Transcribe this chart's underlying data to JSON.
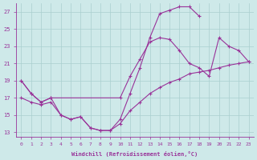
{
  "xlabel": "Windchill (Refroidissement éolien,°C)",
  "xlim": [
    -0.5,
    23.5
  ],
  "ylim": [
    12.5,
    28.0
  ],
  "xticks": [
    0,
    1,
    2,
    3,
    4,
    5,
    6,
    7,
    8,
    9,
    10,
    11,
    12,
    13,
    14,
    15,
    16,
    17,
    18,
    19,
    20,
    21,
    22,
    23
  ],
  "yticks": [
    13,
    15,
    17,
    19,
    21,
    23,
    25,
    27
  ],
  "bg_color": "#cee9e9",
  "grid_color": "#aacfcf",
  "line_color": "#993399",
  "line1_x": [
    0,
    1,
    2,
    3,
    4,
    5,
    6,
    7,
    8,
    9,
    10,
    11,
    12,
    13,
    14,
    15,
    16,
    17,
    18
  ],
  "line1_y": [
    19,
    17.5,
    16.5,
    17.0,
    15.0,
    14.5,
    14.8,
    13.5,
    13.2,
    13.2,
    14.5,
    17.5,
    20.5,
    24.0,
    26.8,
    27.2,
    27.6,
    27.6,
    26.5
  ],
  "line2_x": [
    0,
    1,
    2,
    3,
    10,
    11,
    12,
    13,
    14,
    15,
    16,
    17,
    18,
    19,
    20,
    21,
    22,
    23
  ],
  "line2_y": [
    19,
    17.5,
    16.5,
    17.0,
    17.0,
    19.5,
    21.5,
    23.5,
    24.0,
    23.8,
    22.5,
    21.0,
    20.5,
    19.5,
    24.0,
    23.0,
    22.5,
    21.2
  ],
  "line3_x": [
    0,
    1,
    2,
    3,
    4,
    5,
    6,
    7,
    8,
    9,
    10,
    11,
    12,
    13,
    14,
    15,
    16,
    17,
    18,
    19,
    20,
    21,
    22,
    23
  ],
  "line3_y": [
    17.0,
    16.5,
    16.2,
    16.5,
    15.0,
    14.5,
    14.8,
    13.5,
    13.2,
    13.2,
    14.0,
    15.5,
    16.5,
    17.5,
    18.2,
    18.8,
    19.2,
    19.8,
    20.0,
    20.2,
    20.5,
    20.8,
    21.0,
    21.2
  ]
}
